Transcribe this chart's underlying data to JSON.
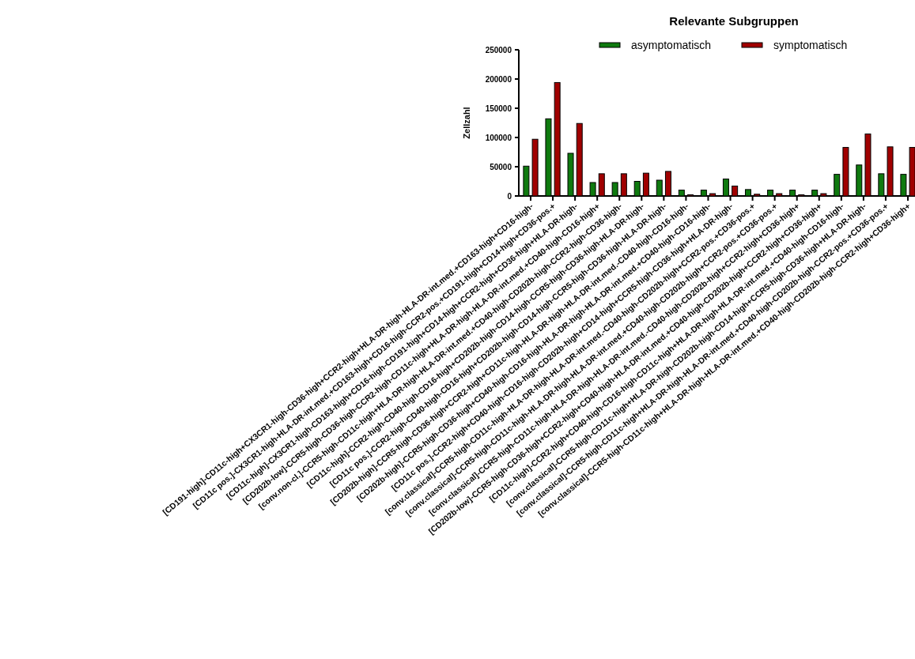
{
  "chart_data": {
    "type": "bar",
    "title": "Relevante Subgruppen",
    "ylabel": "Zellzahl",
    "categories": [
      "[CD191-high]-CD11c-high+CX3CR1-high-CD36-high+CCR2-high+HLA-DR-high-HLA-DR-int.med.+CD163-high+CD16-high-",
      "[CD11c pos.]-CX3CR1-high-HLA-DR-int.med.+CD163-high+CD16-high-CCR2-pos.+CD191-high+CD14-high+CD36-pos.+",
      "[CD11c-high]-CX3CR1-high-CD163-high+CD16-high-CD191-high+CD14-high+CCR2-high+CD36-high+HLA-DR-high-",
      "[CD202b-low]-CCR5-high-CD36-high-CCR2-high-CD11c-high+HLA-DR-high-HLA-DR-int.med.+CD40-high-CD16-high+",
      "[conv.non-cl.]-CCR5-high-CD11c-high+HLA-DR-high-HLA-DR-int.med.+CD40-high-CD202b-high-CCR2-high-CD36-high-",
      "[CD11c-high]-CCR2-high-CD40-high-CD16-high+CD202b-high-CD14-high-CCR5-high-CD36-high-HLA-DR-high-",
      "[CD11c pos.]-CCR2-high-CD40-high-CD16-high+CD202b-high-CD14-high-CCR5-high-CD36-high-HLA-DR-high-",
      "[CD202b-high]-CCR5-high-CD36-high+CCR2-high+CD11c-high-HLA-DR-high-HLA-DR-int.med.-CD40-high-CD16-high-",
      "[CD202b-high]-CCR5-high-CD36-high+CD40-high-CD16-high-HLA-DR-high-HLA-DR-int.med.+CD40-high-CD16-high-",
      "[CD11c pos.]-CCR2-high+CD40-high-CD16-high-CD202b-high+CD14-high+CCR5-high-CD36-high+HLA-DR-high-",
      "[conv.classical]-CCR5-high-CD11c-high-HLA-DR-high-HLA-DR-int.med.-CD40-high-CD202b-high+CCR2-pos.+CD36-pos.+",
      "[conv.classical]-CCR5-high-CD11c-high-HLA-DR-high-HLA-DR-int.med.+CD40-high-CD202b-high+CCR2-pos.+CD36-pos.+",
      "[conv.classical]-CCR5-high-CD11c-high-HLA-DR-high-HLA-DR-int.med.-CD40-high-CD202b-high+CCR2-high+CD36-high+",
      "[CD202b-low]-CCR5-high-CD36-high+CCR2-high+CD40-high-HLA-DR-int.med.+CD40-high-CD202b-high+CCR2-high+CD36-high+",
      "[CD11c-high]-CCR2-high+CD40-high-CD16-high-CD11c-high+HLA-DR-high-HLA-DR-int.med.+CD40-high-CD16-high-",
      "[conv.classical]-CCR5-high-CD11c-high+HLA-DR-high-CD202b-high-CD14-high+CCR5-high-CD36-high+HLA-DR-high-",
      "[conv.classical]-CCR5-high-CD11c-high+HLA-DR-high-HLA-DR-int.med.+CD40-high-CD202b-high-CCR2-pos.+CD36-pos.+",
      "[conv.classical]-CCR5-high-CD11c-high+HLA-DR-high-HLA-DR-int.med.+CD40-high-CD202b-high-CCR2-high+CD36-high+"
    ],
    "series": [
      {
        "name": "asymptomatisch",
        "color": "#0f7a0f",
        "values": [
          51000,
          132000,
          73000,
          23000,
          23000,
          25000,
          27000,
          10000,
          10000,
          29000,
          11000,
          10000,
          10000,
          10000,
          37000,
          53000,
          38000,
          37000
        ]
      },
      {
        "name": "symptomatisch",
        "color": "#a00000",
        "values": [
          97000,
          194000,
          124000,
          38000,
          38000,
          39000,
          42000,
          2000,
          4000,
          17000,
          3000,
          4000,
          2000,
          4000,
          83000,
          106000,
          84000,
          83000
        ]
      }
    ],
    "ylim": [
      0,
      250000
    ],
    "yticks": [
      0,
      50000,
      100000,
      150000,
      200000,
      250000
    ],
    "legend": "top"
  }
}
